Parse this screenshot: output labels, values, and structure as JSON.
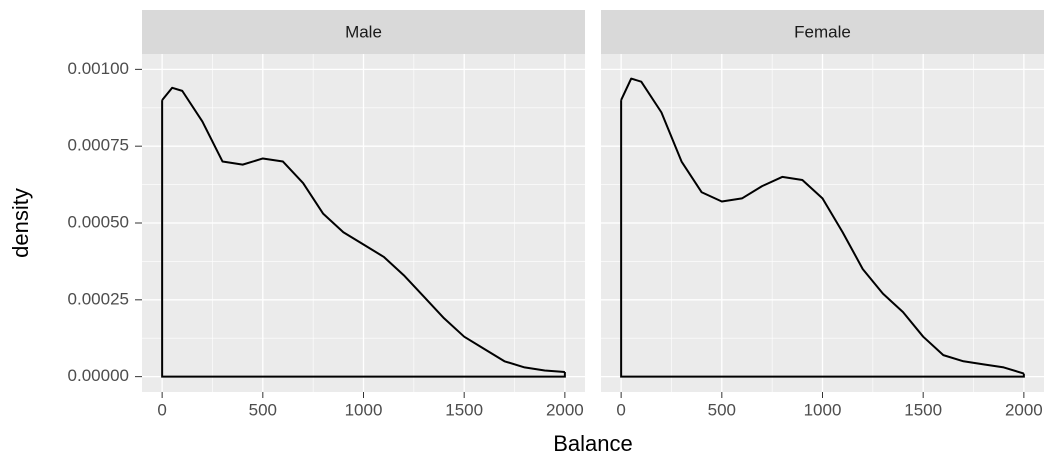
{
  "chart_data": {
    "type": "line",
    "xlabel": "Balance",
    "ylabel": "density",
    "color": "#000000",
    "xlim": [
      -100,
      2100
    ],
    "xticks": [
      0,
      500,
      1000,
      1500,
      2000
    ],
    "minor_xticks": [
      250,
      750,
      1250,
      1750
    ],
    "ylim": [
      -5e-05,
      0.00105
    ],
    "yticks": [
      {
        "value": 0,
        "label": "0.00000"
      },
      {
        "value": 0.00025,
        "label": "0.00025"
      },
      {
        "value": 0.0005,
        "label": "0.00050"
      },
      {
        "value": 0.00075,
        "label": "0.00075"
      },
      {
        "value": 0.001,
        "label": "0.00100"
      }
    ],
    "minor_yticks": [
      0.000125,
      0.000375,
      0.000625,
      0.000875
    ],
    "grid": true,
    "x": [
      0,
      50,
      100,
      200,
      300,
      400,
      500,
      600,
      700,
      800,
      900,
      1000,
      1100,
      1200,
      1300,
      1400,
      1500,
      1600,
      1700,
      1800,
      1900,
      2000
    ],
    "facets": [
      {
        "title": "Male",
        "values": [
          0.0009,
          0.00094,
          0.00093,
          0.00083,
          0.0007,
          0.00069,
          0.00071,
          0.0007,
          0.00063,
          0.00053,
          0.00047,
          0.00043,
          0.00039,
          0.00033,
          0.00026,
          0.00019,
          0.00013,
          9e-05,
          5e-05,
          3e-05,
          2e-05,
          1.5e-05
        ]
      },
      {
        "title": "Female",
        "values": [
          0.0009,
          0.00097,
          0.00096,
          0.00086,
          0.0007,
          0.0006,
          0.00057,
          0.00058,
          0.00062,
          0.00065,
          0.00064,
          0.00058,
          0.00047,
          0.00035,
          0.00027,
          0.00021,
          0.00013,
          7e-05,
          5e-05,
          4e-05,
          3e-05,
          1e-05
        ]
      }
    ]
  }
}
